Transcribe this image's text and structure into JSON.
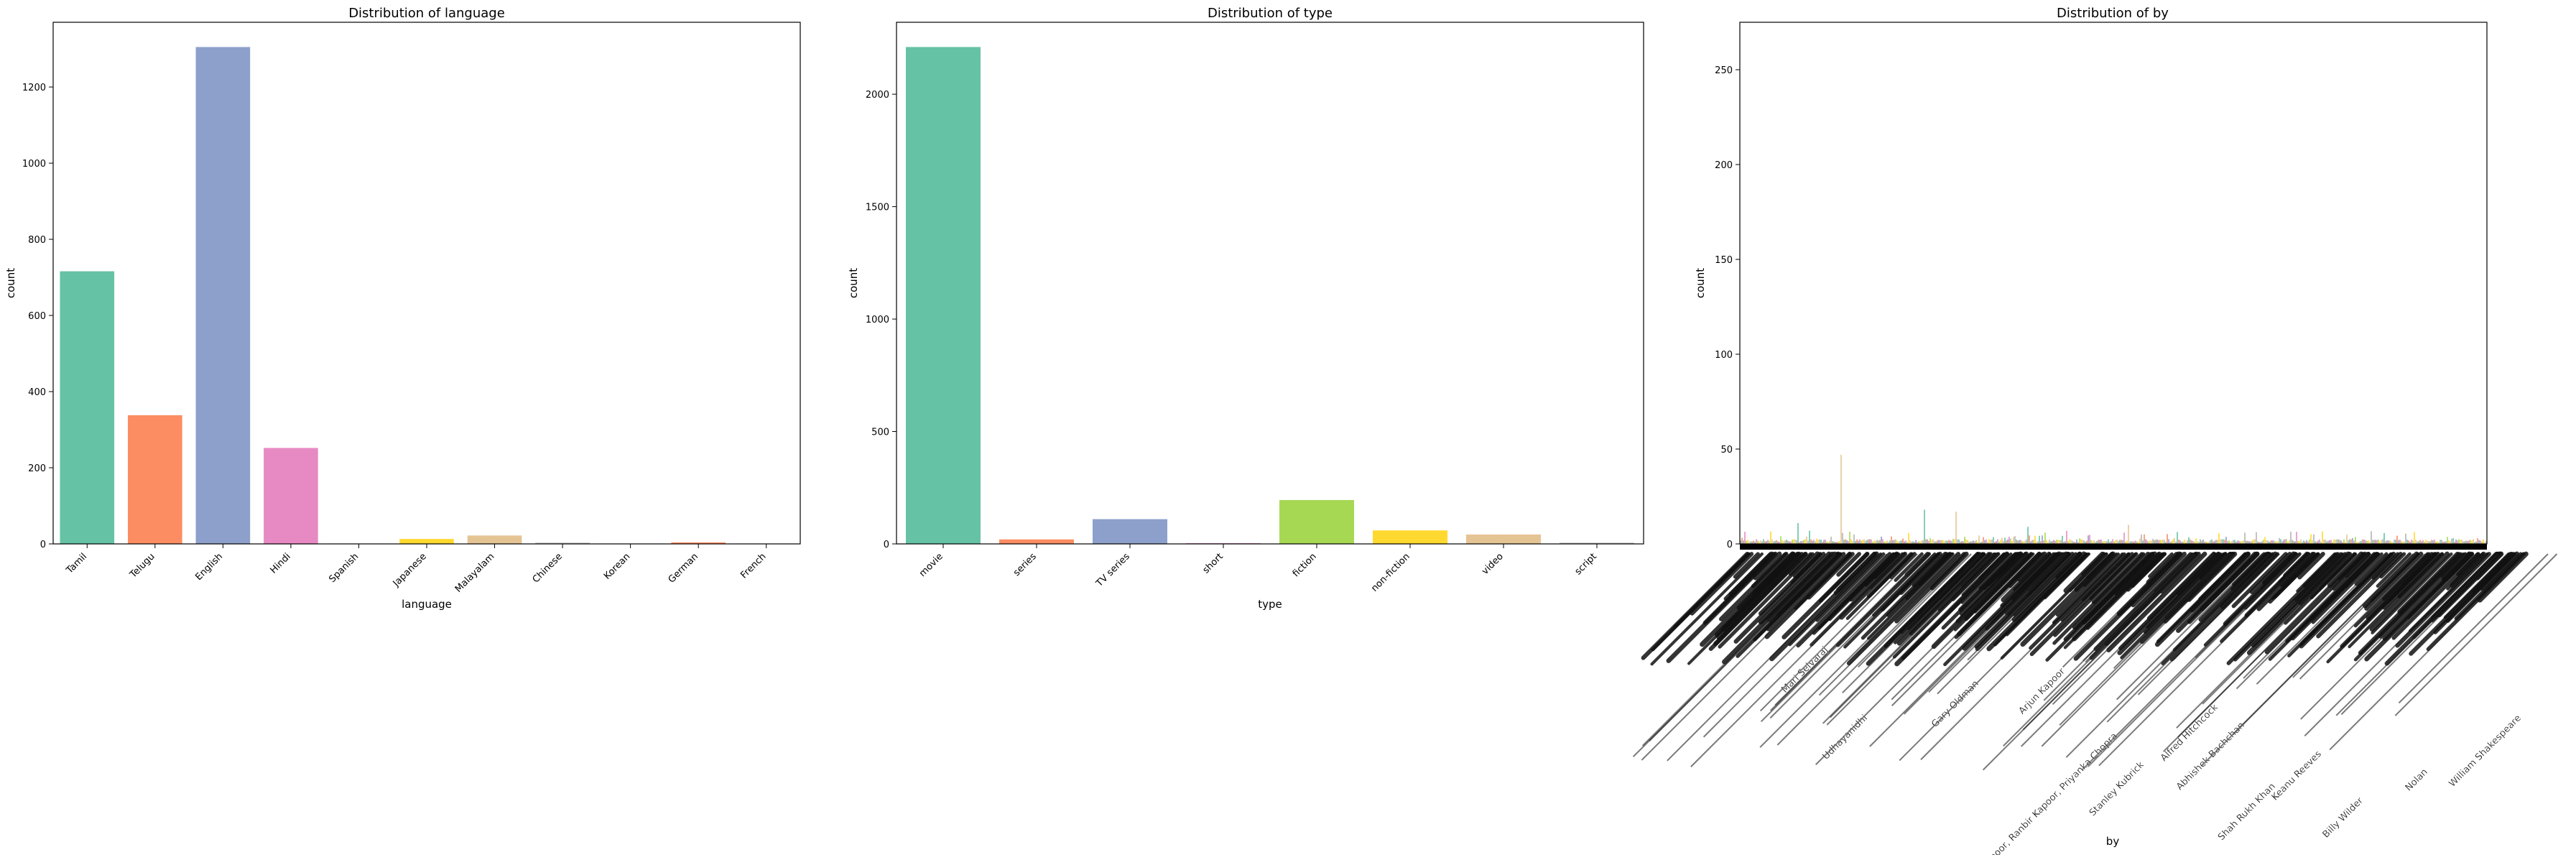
{
  "chart_data": [
    {
      "type": "bar",
      "title": "Distribution of language",
      "xlabel": "language",
      "ylabel": "count",
      "categories": [
        "Tamil",
        "Telugu",
        "English",
        "Hindi",
        "Spanish",
        "Japanese",
        "Malayalam",
        "Chinese",
        "Korean",
        "German",
        "French"
      ],
      "values": [
        716,
        338,
        1305,
        252,
        1,
        13,
        22,
        3,
        1,
        4,
        1
      ],
      "yticks": [
        0,
        200,
        400,
        600,
        800,
        1000,
        1200
      ],
      "ylim": [
        0,
        1370
      ],
      "colors": [
        "#66c2a5",
        "#fc8d62",
        "#8da0cb",
        "#e78ac3",
        "#a6d854",
        "#ffd92f",
        "#e5c494",
        "#b3b3b3",
        "#66c2a5",
        "#fc8d62",
        "#8da0cb"
      ],
      "grid": false
    },
    {
      "type": "bar",
      "title": "Distribution of type",
      "xlabel": "type",
      "ylabel": "count",
      "categories": [
        "movie",
        "series",
        "TV series",
        "short",
        "fiction",
        "non-fiction",
        "video",
        "script"
      ],
      "values": [
        2210,
        20,
        110,
        3,
        195,
        60,
        42,
        5
      ],
      "yticks": [
        0,
        500,
        1000,
        1500,
        2000
      ],
      "ylim": [
        0,
        2320
      ],
      "colors": [
        "#66c2a5",
        "#fc8d62",
        "#8da0cb",
        "#e78ac3",
        "#a6d854",
        "#ffd92f",
        "#e5c494",
        "#b3b3b3"
      ],
      "grid": false
    },
    {
      "type": "bar",
      "title": "Distribution of by",
      "xlabel": "by",
      "ylabel": "count",
      "yticks": [
        0,
        50,
        100,
        150,
        200,
        250
      ],
      "ylim": [
        0,
        275
      ],
      "grid": false,
      "palette": [
        "#66c2a5",
        "#fc8d62",
        "#8da0cb",
        "#e78ac3",
        "#a6d854",
        "#ffd92f",
        "#e5c494",
        "#b3b3b3"
      ],
      "highlight_bars": [
        {
          "index": 70,
          "value": 47
        },
        {
          "index": 128,
          "value": 18
        },
        {
          "index": 150,
          "value": 17
        },
        {
          "index": 270,
          "value": 10
        },
        {
          "index": 40,
          "value": 11
        },
        {
          "index": 200,
          "value": 9
        }
      ],
      "visible_tick_labels": [
        "Mari Selvaraj",
        "Udhayanidhi",
        "Gary Oldman",
        "Arjun Kapoor",
        "Anil Kapoor, Ranbir Kapoor, Priyanka Chopra",
        "Stanley Kubrick",
        "Alfred Hitchcock",
        "Abhishek Bachchan",
        "Shah Rukh Khan",
        "Keanu Reeves",
        "William Shakespeare",
        "Billy Wilder",
        "Nolan"
      ]
    }
  ]
}
